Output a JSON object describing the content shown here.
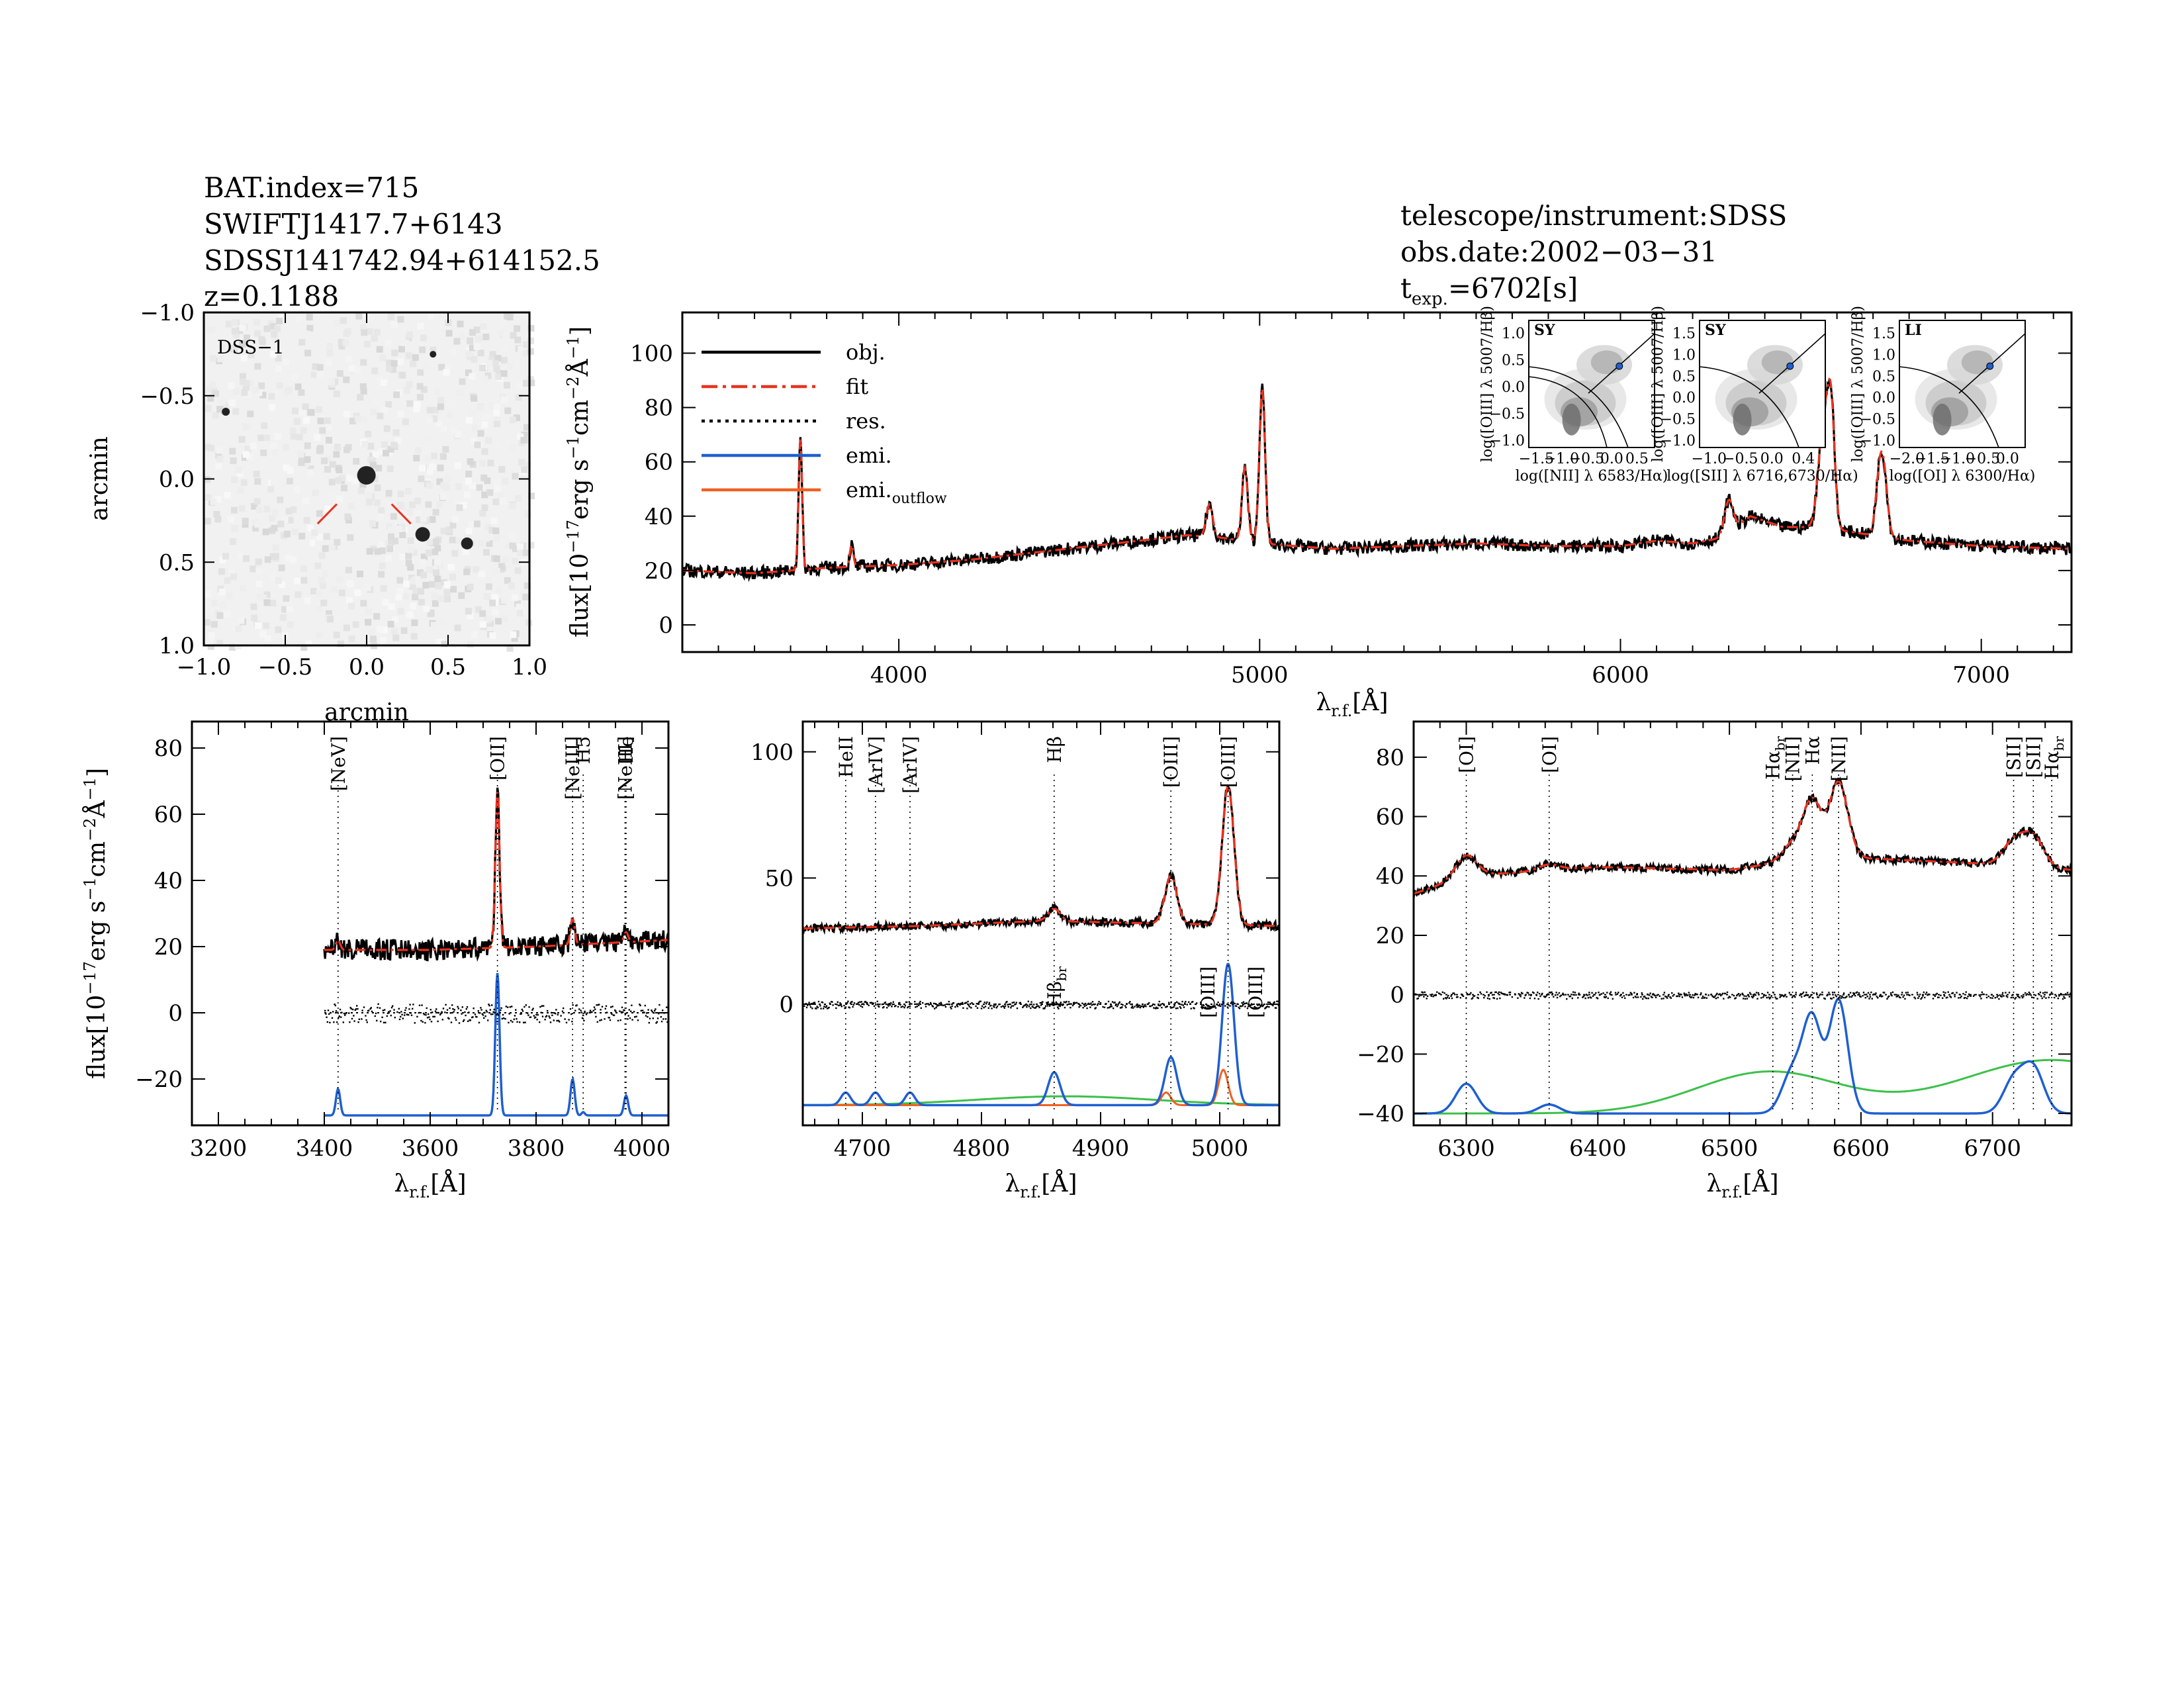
{
  "header_left": {
    "line1": "BAT.index=715",
    "line2": "SWIFTJ1417.7+6143",
    "line3": "SDSSJ141742.94+614152.5",
    "line4": "z=0.1188"
  },
  "header_right": {
    "line1": "telescope/instrument:SDSS",
    "line2": "obs.date:2002−03−31",
    "line3_main": "t",
    "line3_sub": "exp.",
    "line3_value": "=6702[s]"
  },
  "image_panel": {
    "label": "DSS−1",
    "xlabel": "arcmin",
    "ylabel": "arcmin",
    "xticks": [
      "−1.0",
      "−0.5",
      "0.0",
      "0.5",
      "1.0"
    ],
    "yticks": [
      "1.0",
      "0.5",
      "0.0",
      "−0.5",
      "−1.0"
    ]
  },
  "colors": {
    "obj": "#000000",
    "fit": "#e8321e",
    "res": "#000000",
    "emi": "#1f5fd0",
    "outflow": "#f06020",
    "broad": "#3cc04a",
    "marker": "#e8321e"
  },
  "flux_label": {
    "main": "flux[10",
    "exp1": "−17",
    "mid1": "erg s",
    "exp2": "−1",
    "mid2": "cm",
    "exp3": "−2",
    "mid3": "Å",
    "exp4": "−1",
    "end": "]"
  },
  "lambda_label": {
    "main": "λ",
    "sub": "r.f.",
    "unit": "[Å]"
  },
  "legend": [
    {
      "key": "obj",
      "label": "obj.",
      "style": "solid"
    },
    {
      "key": "fit",
      "label": "fit",
      "style": "dashdot"
    },
    {
      "key": "res",
      "label": "res.",
      "style": "dotted"
    },
    {
      "key": "emi",
      "label": "emi.",
      "style": "solid"
    },
    {
      "key": "outflow",
      "label": "emi.",
      "sub": "outflow",
      "style": "solid"
    }
  ],
  "bpt_insets": [
    {
      "tag": "SY",
      "xlabel": "log([NII] λ 6583/Hα)",
      "ylabel": "log([OIII] λ 5007/Hβ)",
      "xticks": [
        "−1.5",
        "−1.0",
        "−0.5",
        "0.0",
        "0.5"
      ],
      "yticks": [
        "1.0",
        "0.5",
        "0.0",
        "−0.5",
        "−1.0"
      ]
    },
    {
      "tag": "SY",
      "xlabel": "log([SII] λ 6716,6730/Hα)",
      "ylabel": "log([OIII] λ 5007/Hβ)",
      "xticks": [
        "−1.0",
        "−0.5",
        "0.0",
        "0.4"
      ],
      "yticks": [
        "1.5",
        "1.0",
        "0.5",
        "0.0",
        "−0.5",
        "−1.0"
      ]
    },
    {
      "tag": "LI",
      "xlabel": "log([OI] λ 6300/Hα)",
      "ylabel": "log([OIII] λ 5007/Hβ)",
      "xticks": [
        "−2.0",
        "−1.5",
        "−1.0",
        "−0.5",
        "0.0"
      ],
      "yticks": [
        "1.5",
        "1.0",
        "0.5",
        "0.0",
        "−0.5",
        "−1.0"
      ]
    }
  ],
  "chart_data": [
    {
      "id": "full_spectrum",
      "type": "line",
      "xlim": [
        3400,
        7250
      ],
      "ylim": [
        -10,
        115
      ],
      "xticks": [
        4000,
        5000,
        6000,
        7000
      ],
      "yticks": [
        0,
        20,
        40,
        60,
        80,
        100
      ],
      "continuum": [
        [
          3400,
          20
        ],
        [
          3600,
          19
        ],
        [
          3800,
          21
        ],
        [
          4000,
          22
        ],
        [
          4200,
          24
        ],
        [
          4400,
          27
        ],
        [
          4600,
          30
        ],
        [
          4800,
          33
        ],
        [
          4900,
          32
        ],
        [
          5000,
          30
        ],
        [
          5100,
          29
        ],
        [
          5200,
          28
        ],
        [
          5400,
          29
        ],
        [
          5600,
          30
        ],
        [
          5800,
          29
        ],
        [
          6000,
          29
        ],
        [
          6100,
          31
        ],
        [
          6200,
          30
        ],
        [
          6280,
          32
        ],
        [
          6360,
          40
        ],
        [
          6450,
          36
        ],
        [
          6550,
          36
        ],
        [
          6700,
          33
        ],
        [
          6800,
          31
        ],
        [
          7000,
          29
        ],
        [
          7250,
          28
        ]
      ],
      "emission": [
        {
          "x": 3727,
          "a": 48,
          "w": 5
        },
        {
          "x": 3869,
          "a": 8,
          "w": 5
        },
        {
          "x": 4861,
          "a": 12,
          "w": 9
        },
        {
          "x": 4959,
          "a": 27,
          "w": 8
        },
        {
          "x": 5007,
          "a": 57,
          "w": 8
        },
        {
          "x": 6300,
          "a": 12,
          "w": 12
        },
        {
          "x": 6563,
          "a": 38,
          "w": 14
        },
        {
          "x": 6584,
          "a": 40,
          "w": 10
        },
        {
          "x": 6717,
          "a": 20,
          "w": 10
        },
        {
          "x": 6731,
          "a": 20,
          "w": 10
        }
      ],
      "noise": 2.4
    },
    {
      "id": "oii_region",
      "type": "line",
      "xlim": [
        3150,
        4050
      ],
      "ylim": [
        -34,
        88
      ],
      "data_start": 3400,
      "xticks": [
        3200,
        3400,
        3600,
        3800,
        4000
      ],
      "yticks": [
        -20,
        0,
        20,
        40,
        60,
        80
      ],
      "continuum": [
        [
          3400,
          19
        ],
        [
          3600,
          19
        ],
        [
          3800,
          20
        ],
        [
          4050,
          22
        ]
      ],
      "emission": [
        {
          "x": 3426,
          "a": 3,
          "w": 4
        },
        {
          "x": 3727,
          "a": 47,
          "w": 4
        },
        {
          "x": 3869,
          "a": 8,
          "w": 4
        },
        {
          "x": 3970,
          "a": 3,
          "w": 4
        }
      ],
      "components": [
        {
          "x": 3426,
          "a": 8,
          "w": 4
        },
        {
          "x": 3727,
          "a": 43,
          "w": 4
        },
        {
          "x": 3869,
          "a": 11,
          "w": 4
        },
        {
          "x": 3889,
          "a": 1,
          "w": 3
        },
        {
          "x": 3970,
          "a": 6,
          "w": 4
        }
      ],
      "baseline": -31,
      "noise": 3.2,
      "lines": [
        {
          "x": 3426,
          "label": "[NeV]",
          "color": "#000000"
        },
        {
          "x": 3727,
          "label": "[OII]",
          "color": "#000000"
        },
        {
          "x": 3869,
          "label": "[NeIII]",
          "color": "#000000"
        },
        {
          "x": 3889,
          "label": "H5",
          "color": "#e8321e"
        },
        {
          "x": 3968,
          "label": "[NeIII]",
          "color": "#000000"
        },
        {
          "x": 3970,
          "label": "He",
          "color": "#e8321e"
        }
      ]
    },
    {
      "id": "hb_oiii_region",
      "type": "line",
      "xlim": [
        4650,
        5050
      ],
      "ylim": [
        -48,
        112
      ],
      "xticks": [
        4700,
        4800,
        4900,
        5000
      ],
      "yticks": [
        0,
        50,
        100
      ],
      "continuum": [
        [
          4650,
          30
        ],
        [
          4750,
          31
        ],
        [
          4850,
          33
        ],
        [
          4950,
          32
        ],
        [
          5050,
          31
        ]
      ],
      "emission": [
        {
          "x": 4861,
          "a": 5,
          "w": 5
        },
        {
          "x": 4959,
          "a": 19,
          "w": 5
        },
        {
          "x": 5007,
          "a": 55,
          "w": 5
        }
      ],
      "components": [
        {
          "x": 4686,
          "a": 5,
          "w": 4
        },
        {
          "x": 4711,
          "a": 5,
          "w": 4
        },
        {
          "x": 4740,
          "a": 5,
          "w": 4
        },
        {
          "x": 4861,
          "a": 13,
          "w": 5
        },
        {
          "x": 4959,
          "a": 19,
          "w": 5
        },
        {
          "x": 5007,
          "a": 56,
          "w": 5
        }
      ],
      "outflow_components": [
        {
          "x": 4955,
          "a": 5,
          "w": 4
        },
        {
          "x": 5003,
          "a": 14,
          "w": 4
        }
      ],
      "broad_components": [
        {
          "x": 4870,
          "a": 3.5,
          "w": 75
        }
      ],
      "baseline": -40,
      "noise": 1.6,
      "lines": [
        {
          "x": 4686,
          "label": "HeII",
          "color": "#000000"
        },
        {
          "x": 4711,
          "label": "[ArIV]",
          "color": "#000000"
        },
        {
          "x": 4740,
          "label": "[ArIV]",
          "color": "#000000"
        },
        {
          "x": 4861,
          "label": "Hβ",
          "color": "#000000"
        },
        {
          "x": 4959,
          "label": "[OIII]",
          "color": "#000000"
        },
        {
          "x": 5007,
          "label": "[OIII]",
          "color": "#000000"
        }
      ],
      "lower_labels": [
        {
          "x": 4861,
          "label": "Hβ",
          "sub": "br"
        },
        {
          "x": 4990,
          "label": "[OIII]",
          "sub": ""
        },
        {
          "x": 5030,
          "label": "[OIII]",
          "sub": ""
        }
      ]
    },
    {
      "id": "ha_region",
      "type": "line",
      "xlim": [
        6260,
        6760
      ],
      "ylim": [
        -44,
        92
      ],
      "xticks": [
        6300,
        6400,
        6500,
        6600,
        6700
      ],
      "yticks": [
        -40,
        -20,
        0,
        20,
        40,
        60,
        80
      ],
      "continuum": [
        [
          6260,
          34
        ],
        [
          6300,
          40
        ],
        [
          6400,
          43
        ],
        [
          6500,
          42
        ],
        [
          6530,
          44
        ],
        [
          6600,
          46
        ],
        [
          6700,
          44
        ],
        [
          6760,
          42
        ]
      ],
      "emission": [
        {
          "x": 6300,
          "a": 7,
          "w": 8
        },
        {
          "x": 6363,
          "a": 2,
          "w": 8
        },
        {
          "x": 6548,
          "a": 6,
          "w": 8
        },
        {
          "x": 6563,
          "a": 20,
          "w": 7
        },
        {
          "x": 6583,
          "a": 26,
          "w": 7
        },
        {
          "x": 6716,
          "a": 8,
          "w": 8
        },
        {
          "x": 6731,
          "a": 10,
          "w": 8
        }
      ],
      "components": [
        {
          "x": 6300,
          "a": 10,
          "w": 8
        },
        {
          "x": 6363,
          "a": 3,
          "w": 8
        },
        {
          "x": 6548,
          "a": 14,
          "w": 8
        },
        {
          "x": 6563,
          "a": 31,
          "w": 7
        },
        {
          "x": 6583,
          "a": 38,
          "w": 7
        },
        {
          "x": 6716,
          "a": 11,
          "w": 8
        },
        {
          "x": 6731,
          "a": 15,
          "w": 8
        }
      ],
      "broad_components": [
        {
          "x": 6530,
          "a": 14,
          "w": 55
        },
        {
          "x": 6745,
          "a": 18,
          "w": 70
        }
      ],
      "baseline": -40,
      "noise": 1.3,
      "lines": [
        {
          "x": 6300,
          "label": "[OI]",
          "color": "#000000"
        },
        {
          "x": 6363,
          "label": "[OI]",
          "color": "#000000"
        },
        {
          "x": 6533,
          "label": "Hα",
          "sub": "br",
          "color": "#000000"
        },
        {
          "x": 6548,
          "label": "[NII]",
          "color": "#000000"
        },
        {
          "x": 6563,
          "label": "Hα",
          "color": "#000000"
        },
        {
          "x": 6583,
          "label": "[NII]",
          "color": "#000000"
        },
        {
          "x": 6716,
          "label": "[SII]",
          "color": "#000000"
        },
        {
          "x": 6731,
          "label": "[SII]",
          "color": "#000000"
        },
        {
          "x": 6745,
          "label": "Hα",
          "sub": "br",
          "color": "#000000"
        }
      ]
    }
  ]
}
